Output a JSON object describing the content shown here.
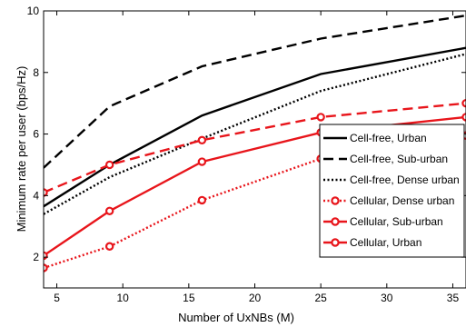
{
  "chart_data": {
    "type": "line",
    "title": "",
    "xlabel": "Number of UxNBs (M)",
    "ylabel": "Minimum rate per user (bps/Hz)",
    "xlim": [
      4,
      36
    ],
    "ylim": [
      1,
      10
    ],
    "xticks": [
      5,
      10,
      15,
      20,
      25,
      30,
      35
    ],
    "yticks": [
      2,
      4,
      6,
      8,
      10
    ],
    "grid": false,
    "legend_position": "bottom-right",
    "series": [
      {
        "name": "Cell-free, Urban",
        "color": "#000000",
        "line_style": "solid",
        "marker": "none",
        "x": [
          4,
          9,
          16,
          25,
          36
        ],
        "y": [
          3.65,
          5.0,
          6.6,
          7.95,
          8.8
        ]
      },
      {
        "name": "Cell-free, Sub-urban",
        "color": "#000000",
        "line_style": "dashed",
        "marker": "none",
        "x": [
          4,
          9,
          16,
          25,
          36
        ],
        "y": [
          4.9,
          6.9,
          8.2,
          9.1,
          9.85
        ]
      },
      {
        "name": "Cell-free, Dense urban",
        "color": "#000000",
        "line_style": "dotted",
        "marker": "none",
        "x": [
          4,
          9,
          16,
          25,
          36
        ],
        "y": [
          3.4,
          4.6,
          5.85,
          7.4,
          8.6
        ]
      },
      {
        "name": "Cellular, Dense urban",
        "color": "#e8151b",
        "line_style": "dotted",
        "marker": "circle",
        "x": [
          4,
          9,
          16,
          25,
          36
        ],
        "y": [
          1.65,
          2.35,
          3.85,
          5.2,
          5.95
        ]
      },
      {
        "name": "Cellular, Sub-urban",
        "color": "#e8151b",
        "line_style": "dashed",
        "marker": "circle",
        "x": [
          4,
          9,
          16,
          25,
          36
        ],
        "y": [
          4.1,
          5.0,
          5.8,
          6.55,
          7.0
        ]
      },
      {
        "name": "Cellular, Urban",
        "color": "#e8151b",
        "line_style": "solid",
        "marker": "circle",
        "x": [
          4,
          9,
          16,
          25,
          36
        ],
        "y": [
          2.05,
          3.5,
          5.1,
          6.05,
          6.55
        ]
      }
    ]
  }
}
